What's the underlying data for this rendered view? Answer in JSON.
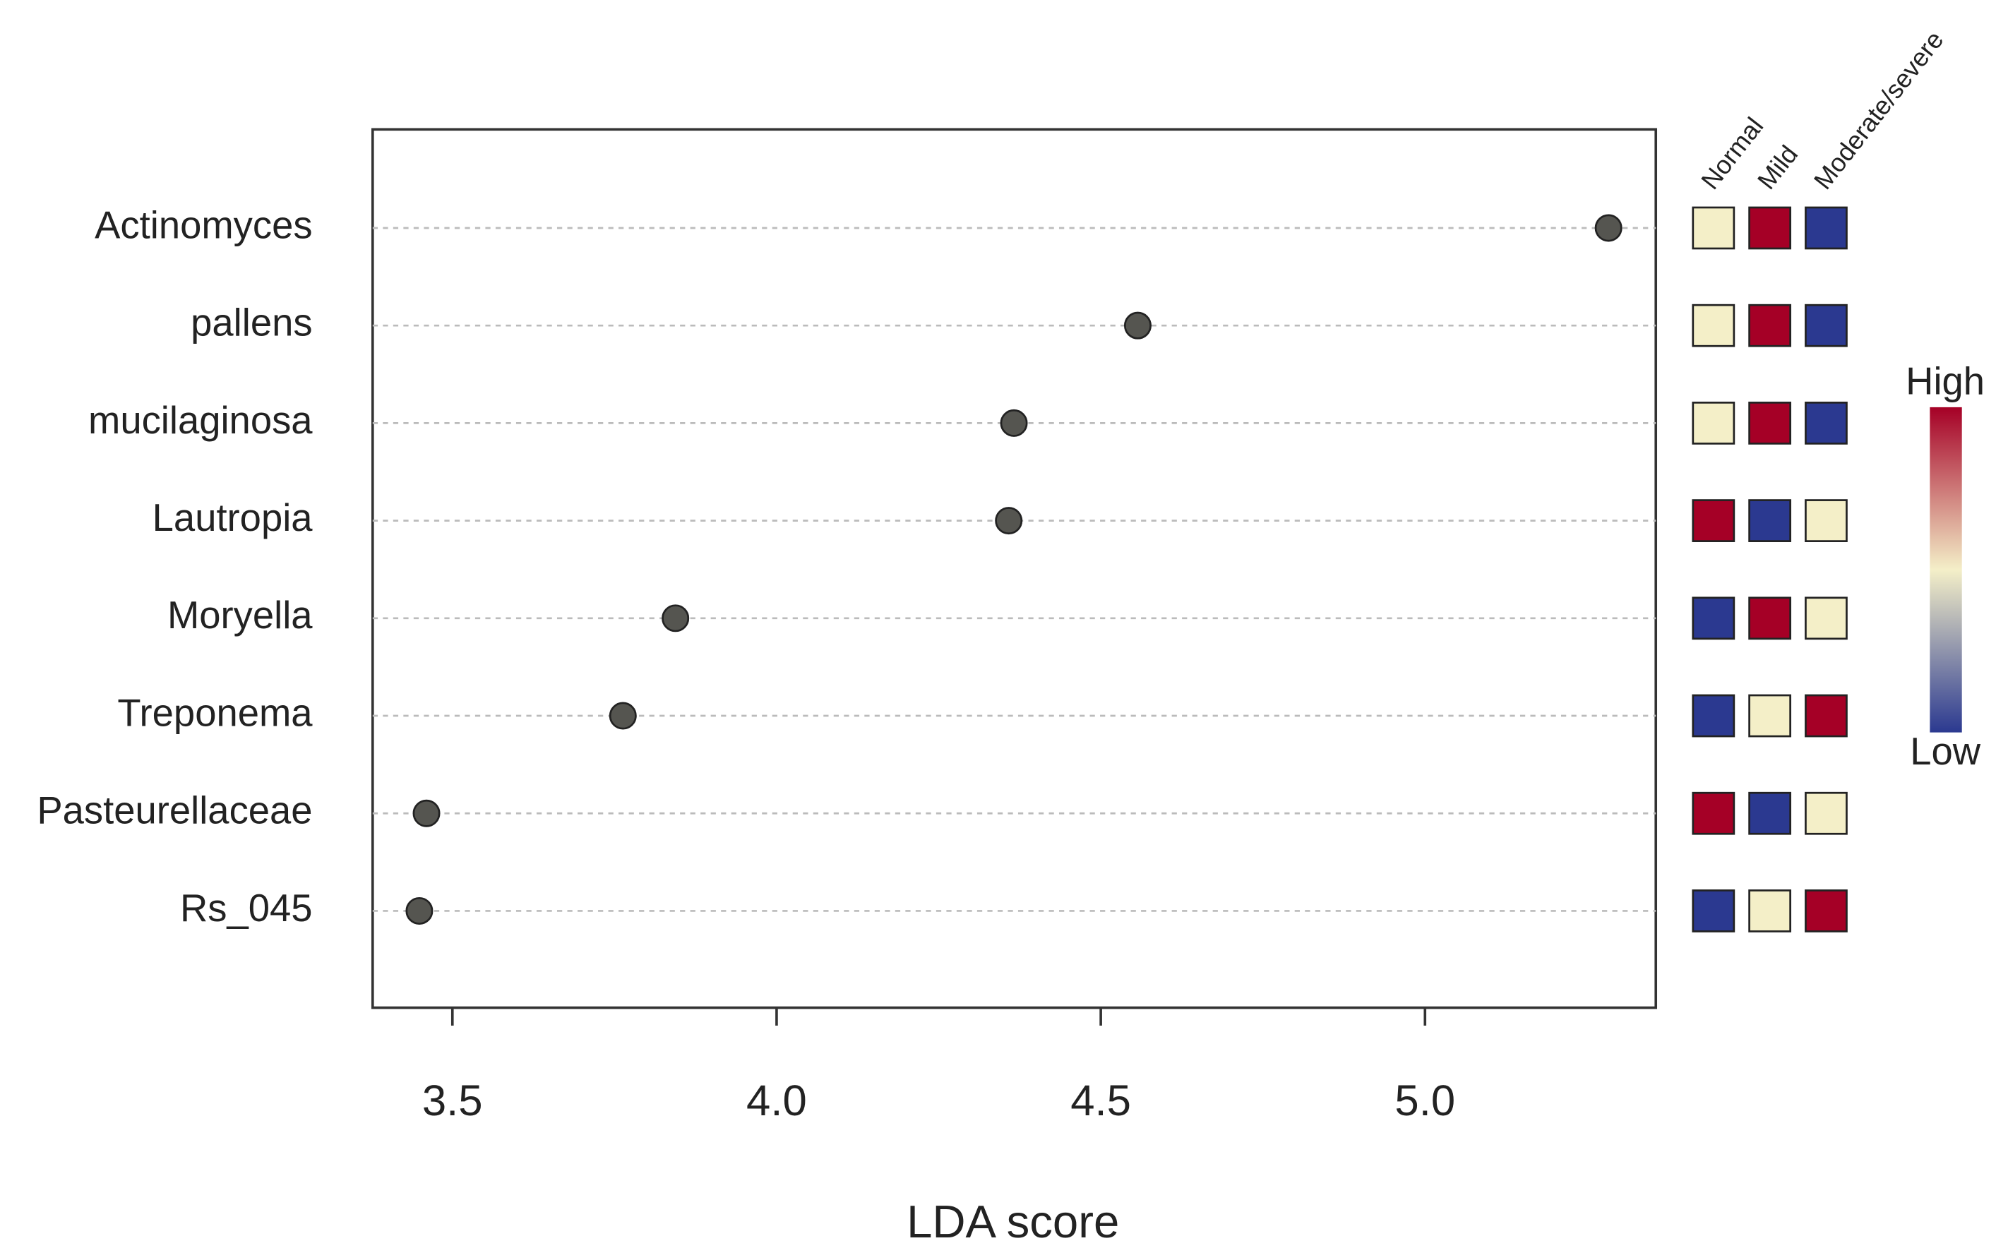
{
  "chart_data": {
    "type": "dot",
    "x_label": "LDA score",
    "categories": [
      "Actinomyces",
      "pallens",
      "mucilaginosa",
      "Lautropia",
      "Moryella",
      "Treponema",
      "Pasteurellaceae",
      "Rs_045"
    ],
    "values": [
      5.283,
      4.557,
      4.366,
      4.358,
      3.844,
      3.763,
      3.46,
      3.449
    ],
    "color": "#555550",
    "xlim": [
      3.377,
      5.356
    ],
    "xticks": [
      3.5,
      {
        "value": 4,
        "label": "4.0"
      },
      4.5,
      {
        "value": 5,
        "label": "5.0"
      }
    ],
    "grid": true,
    "heatmap": {
      "columns": [
        "Normal",
        "Mild",
        "Moderate/severe"
      ],
      "values": [
        [
          0.5,
          1,
          0
        ],
        [
          0.5,
          1,
          0
        ],
        [
          0.5,
          1,
          0
        ],
        [
          1,
          0,
          0.5
        ],
        [
          0,
          1,
          0.5
        ],
        [
          0,
          0.5,
          1
        ],
        [
          1,
          0,
          0.5
        ],
        [
          0,
          0.5,
          1
        ]
      ],
      "colors": [
        "#2b3990",
        "#f4efc8",
        "#a50026"
      ],
      "high_label": "High",
      "low_label": "Low"
    }
  }
}
